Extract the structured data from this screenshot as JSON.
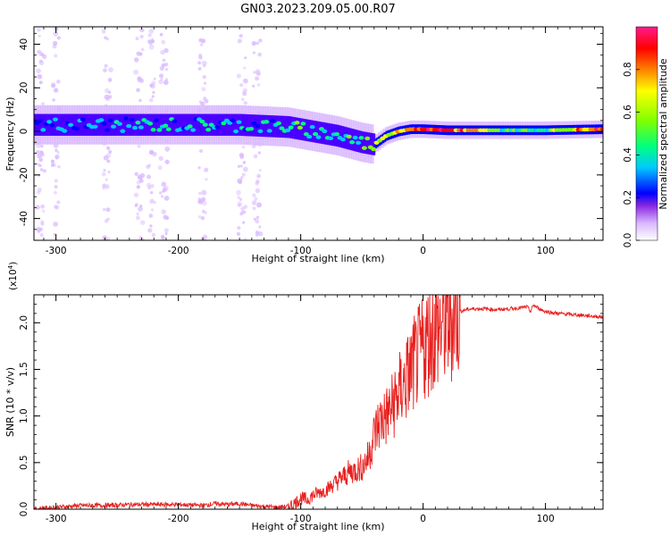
{
  "figure": {
    "title": "GN03.2023.209.05.00.R07"
  },
  "chart_data": [
    {
      "type": "heatmap",
      "xlabel": "Height of straight line (km)",
      "ylabel": "Frequency (Hz)",
      "xlim": [
        -318,
        147
      ],
      "ylim": [
        -50,
        48
      ],
      "xticks": [
        -300,
        -200,
        -100,
        0,
        100
      ],
      "yticks": [
        -40,
        -20,
        0,
        20,
        40
      ],
      "colorbar": {
        "label": "Normalized spectral amplitude",
        "range": [
          0,
          1
        ],
        "ticks": [
          "0.0",
          "0.2",
          "0.4",
          "0.6",
          "0.8"
        ],
        "tick_values": [
          0,
          0.2,
          0.4,
          0.6,
          0.8
        ]
      },
      "colormap": [
        "#ffffff",
        "#d9b8ff",
        "#8a2be2",
        "#4b00ff",
        "#0000ff",
        "#00c8ff",
        "#00ff80",
        "#80ff00",
        "#ffff00",
        "#ff8000",
        "#ff0000",
        "#ff1a8c"
      ],
      "ridge": [
        {
          "x": -318,
          "y": 3,
          "a": 0.4
        },
        {
          "x": -200,
          "y": 3,
          "a": 0.45
        },
        {
          "x": -150,
          "y": 3,
          "a": 0.45
        },
        {
          "x": -110,
          "y": 2,
          "a": 0.5
        },
        {
          "x": -90,
          "y": 0,
          "a": 0.55
        },
        {
          "x": -70,
          "y": -2,
          "a": 0.5
        },
        {
          "x": -50,
          "y": -5,
          "a": 0.5
        },
        {
          "x": -40,
          "y": -6,
          "a": 0.7
        },
        {
          "x": -30,
          "y": -2,
          "a": 0.7
        },
        {
          "x": -20,
          "y": 0,
          "a": 0.8
        },
        {
          "x": -10,
          "y": 1,
          "a": 0.85
        },
        {
          "x": 0,
          "y": 1,
          "a": 0.95
        },
        {
          "x": 20,
          "y": 0.5,
          "a": 0.9
        },
        {
          "x": 60,
          "y": 0.5,
          "a": 0.6
        },
        {
          "x": 100,
          "y": 0.5,
          "a": 0.55
        },
        {
          "x": 147,
          "y": 1,
          "a": 0.95
        }
      ]
    },
    {
      "type": "line",
      "xlabel": "Height of straight line (km)",
      "ylabel": "SNR (10 * v/v)",
      "multiplier": "(x10",
      "multiplier_exp": "4",
      "multiplier_close": ")",
      "xlim": [
        -318,
        147
      ],
      "ylim": [
        0,
        2.3
      ],
      "xticks": [
        -300,
        -200,
        -100,
        0,
        100
      ],
      "yticks": [
        "0.0",
        "0.5",
        "1.0",
        "1.5",
        "2.0"
      ],
      "ytick_values": [
        0,
        0.5,
        1.0,
        1.5,
        2.0
      ],
      "color": "#e8201e",
      "series": [
        {
          "x": [
            -318,
            -300,
            -280,
            -260,
            -240,
            -220,
            -200,
            -180,
            -170,
            -160,
            -150,
            -140,
            -130,
            -120,
            -110,
            -105,
            -100,
            -95,
            -90,
            -85,
            -80,
            -75,
            -70,
            -65,
            -60,
            -55,
            -50,
            -45,
            -40,
            -35,
            -30,
            -25,
            -20,
            -15,
            -10,
            -5,
            0,
            5,
            10,
            15,
            20,
            25,
            30,
            35,
            40,
            50,
            60,
            70,
            80,
            85,
            88,
            90,
            95,
            100,
            110,
            120,
            130,
            140,
            147
          ],
          "y": [
            0.0,
            0.02,
            0.04,
            0.04,
            0.05,
            0.05,
            0.05,
            0.04,
            0.06,
            0.05,
            0.06,
            0.04,
            0.03,
            0.02,
            0.03,
            0.06,
            0.12,
            0.1,
            0.15,
            0.18,
            0.2,
            0.25,
            0.3,
            0.35,
            0.4,
            0.42,
            0.45,
            0.55,
            0.8,
            0.95,
            1.0,
            1.1,
            1.25,
            1.35,
            1.5,
            1.6,
            1.72,
            1.85,
            1.9,
            1.95,
            2.0,
            2.08,
            2.12,
            2.14,
            2.15,
            2.15,
            2.14,
            2.15,
            2.16,
            2.17,
            2.12,
            2.19,
            2.15,
            2.12,
            2.1,
            2.09,
            2.08,
            2.07,
            2.06
          ]
        }
      ]
    }
  ]
}
